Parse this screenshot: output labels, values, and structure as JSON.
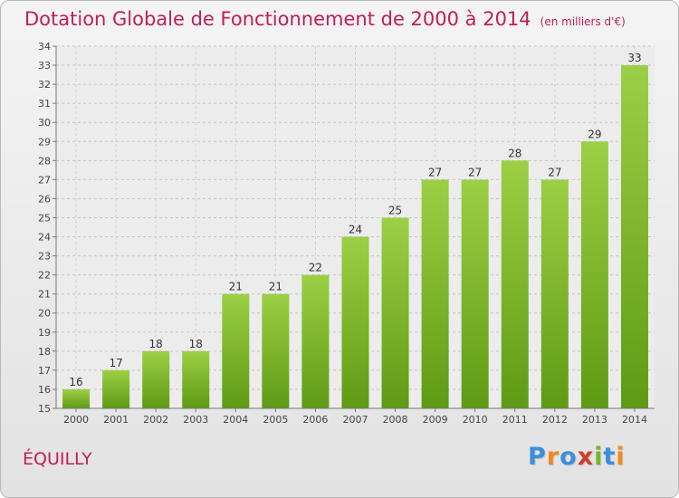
{
  "header": {
    "title": "Dotation Globale de Fonctionnement de 2000 à 2014",
    "unit": "(en milliers d'€)"
  },
  "footer": {
    "commune": "ÉQUILLY",
    "logo": "Proxiti"
  },
  "colors": {
    "title": "#c01d58",
    "bar_light": "#9ccf45",
    "bar_dark": "#5f9a14",
    "logo": [
      "#3a8fd8",
      "#f08a1c",
      "#3a8fd8",
      "#d23b2b",
      "#7ab32e",
      "#3a8fd8",
      "#f08a1c"
    ]
  },
  "chart_data": {
    "type": "bar",
    "categories": [
      "2000",
      "2001",
      "2002",
      "2003",
      "2004",
      "2005",
      "2006",
      "2007",
      "2008",
      "2009",
      "2010",
      "2011",
      "2012",
      "2013",
      "2014"
    ],
    "values": [
      16,
      17,
      18,
      18,
      21,
      21,
      22,
      24,
      25,
      27,
      27,
      28,
      27,
      29,
      33
    ],
    "ylim": [
      15,
      34
    ],
    "ytick_step": 1,
    "grid": true,
    "data_labels": true
  }
}
